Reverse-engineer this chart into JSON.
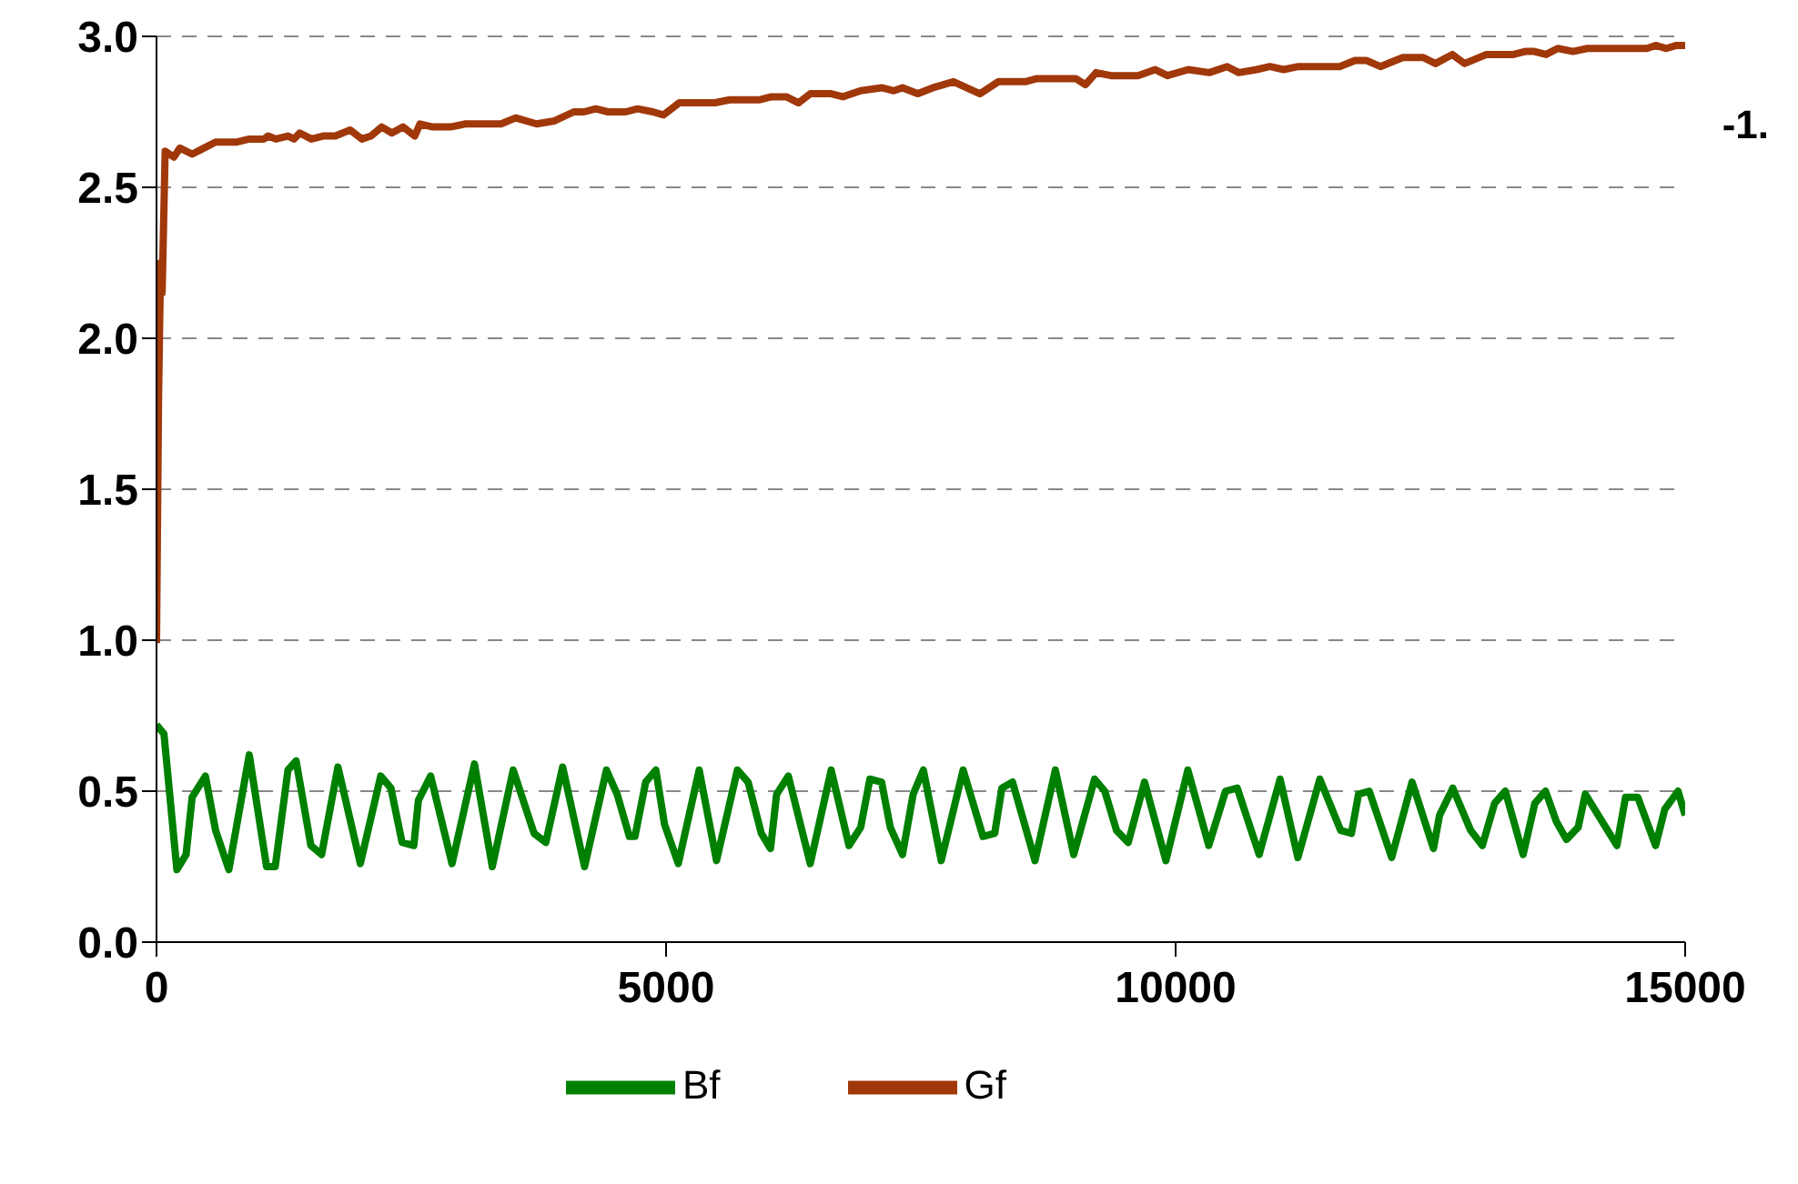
{
  "chart_data": {
    "type": "line",
    "xlim": [
      0,
      15000
    ],
    "xticks": [
      0,
      5000,
      10000,
      15000
    ],
    "ylim": [
      0,
      3.0
    ],
    "yticks": [
      {
        "value": 0,
        "label": "0.0"
      },
      {
        "value": 0.5,
        "label": "0.5"
      },
      {
        "value": 1,
        "label": "1.0"
      },
      {
        "value": 1.5,
        "label": "1.5"
      },
      {
        "value": 2,
        "label": "2.0"
      },
      {
        "value": 2.5,
        "label": "2.5"
      },
      {
        "value": 3,
        "label": "3.0"
      }
    ],
    "grid": "y",
    "legend": "bottom",
    "marker": "none",
    "line_style": "solid",
    "annotations": [
      "-1."
    ],
    "series": [
      {
        "name": "Bf",
        "color": "#008000",
        "x": [
          0,
          73,
          200,
          290,
          350,
          480,
          580,
          710,
          910,
          1080,
          1165,
          1290,
          1370,
          1515,
          1620,
          1780,
          2000,
          2200,
          2300,
          2410,
          2525,
          2570,
          2690,
          2900,
          3120,
          3295,
          3500,
          3705,
          3820,
          3985,
          4200,
          4415,
          4520,
          4640,
          4695,
          4800,
          4900,
          4985,
          5120,
          5325,
          5495,
          5700,
          5805,
          5935,
          6025,
          6085,
          6200,
          6415,
          6620,
          6795,
          6910,
          7000,
          7115,
          7200,
          7320,
          7425,
          7525,
          7700,
          7915,
          8110,
          8225,
          8295,
          8400,
          8620,
          8820,
          9000,
          9205,
          9305,
          9420,
          9535,
          9695,
          9905,
          10120,
          10325,
          10490,
          10605,
          10820,
          11025,
          11200,
          11415,
          11620,
          11725,
          11795,
          11900,
          12120,
          12320,
          12530,
          12590,
          12720,
          12895,
          13010,
          13130,
          13235,
          13410,
          13525,
          13630,
          13735,
          13835,
          13950,
          14020,
          14330,
          14415,
          14535,
          14710,
          14800,
          14930,
          15000
        ],
        "values": [
          0.72,
          0.69,
          0.24,
          0.29,
          0.48,
          0.55,
          0.37,
          0.24,
          0.62,
          0.25,
          0.25,
          0.57,
          0.6,
          0.32,
          0.29,
          0.58,
          0.26,
          0.55,
          0.51,
          0.33,
          0.32,
          0.47,
          0.55,
          0.26,
          0.59,
          0.25,
          0.57,
          0.36,
          0.33,
          0.58,
          0.25,
          0.57,
          0.49,
          0.35,
          0.35,
          0.53,
          0.57,
          0.39,
          0.26,
          0.57,
          0.27,
          0.57,
          0.53,
          0.36,
          0.31,
          0.49,
          0.55,
          0.26,
          0.57,
          0.32,
          0.38,
          0.54,
          0.53,
          0.38,
          0.29,
          0.49,
          0.57,
          0.27,
          0.57,
          0.35,
          0.36,
          0.51,
          0.53,
          0.27,
          0.57,
          0.29,
          0.54,
          0.5,
          0.37,
          0.33,
          0.53,
          0.27,
          0.57,
          0.32,
          0.5,
          0.51,
          0.29,
          0.54,
          0.28,
          0.54,
          0.37,
          0.36,
          0.49,
          0.5,
          0.28,
          0.53,
          0.31,
          0.42,
          0.51,
          0.37,
          0.32,
          0.46,
          0.5,
          0.29,
          0.46,
          0.5,
          0.4,
          0.34,
          0.38,
          0.49,
          0.32,
          0.48,
          0.48,
          0.32,
          0.44,
          0.5,
          0.42
        ]
      },
      {
        "name": "Gf",
        "color": "#a0380a",
        "x": [
          0,
          20,
          40,
          55,
          85,
          170,
          230,
          350,
          465,
          580,
          790,
          910,
          1055,
          1095,
          1170,
          1290,
          1350,
          1405,
          1520,
          1635,
          1755,
          1900,
          2015,
          2105,
          2210,
          2310,
          2420,
          2535,
          2585,
          2710,
          2885,
          3030,
          3380,
          3525,
          3730,
          3905,
          4095,
          4195,
          4310,
          4430,
          4605,
          4720,
          4870,
          4975,
          5130,
          5480,
          5625,
          5920,
          6035,
          6180,
          6300,
          6415,
          6620,
          6735,
          6910,
          7115,
          7235,
          7320,
          7470,
          7620,
          7820,
          8080,
          8260,
          8525,
          8640,
          9020,
          9115,
          9220,
          9365,
          9630,
          9800,
          9920,
          10125,
          10330,
          10505,
          10620,
          10795,
          10925,
          11060,
          11205,
          11610,
          11760,
          11875,
          12010,
          12230,
          12430,
          12550,
          12715,
          12835,
          13050,
          13315,
          13430,
          13520,
          13635,
          13750,
          13900,
          14040,
          14625,
          14710,
          14815,
          14915,
          15000
        ],
        "values": [
          0.99,
          1.8,
          2.25,
          2.15,
          2.62,
          2.6,
          2.63,
          2.61,
          2.63,
          2.65,
          2.65,
          2.66,
          2.66,
          2.67,
          2.66,
          2.67,
          2.66,
          2.68,
          2.66,
          2.67,
          2.67,
          2.69,
          2.66,
          2.67,
          2.7,
          2.68,
          2.7,
          2.67,
          2.71,
          2.7,
          2.7,
          2.71,
          2.71,
          2.73,
          2.71,
          2.72,
          2.75,
          2.75,
          2.76,
          2.75,
          2.75,
          2.76,
          2.75,
          2.74,
          2.78,
          2.78,
          2.79,
          2.79,
          2.8,
          2.8,
          2.78,
          2.81,
          2.81,
          2.8,
          2.82,
          2.83,
          2.82,
          2.83,
          2.81,
          2.83,
          2.85,
          2.81,
          2.85,
          2.85,
          2.86,
          2.86,
          2.84,
          2.88,
          2.87,
          2.87,
          2.89,
          2.87,
          2.89,
          2.88,
          2.9,
          2.88,
          2.89,
          2.9,
          2.89,
          2.9,
          2.9,
          2.92,
          2.92,
          2.9,
          2.93,
          2.93,
          2.91,
          2.94,
          2.91,
          2.94,
          2.94,
          2.95,
          2.95,
          2.94,
          2.96,
          2.95,
          2.96,
          2.96,
          2.97,
          2.96,
          2.97,
          2.97
        ]
      }
    ]
  }
}
